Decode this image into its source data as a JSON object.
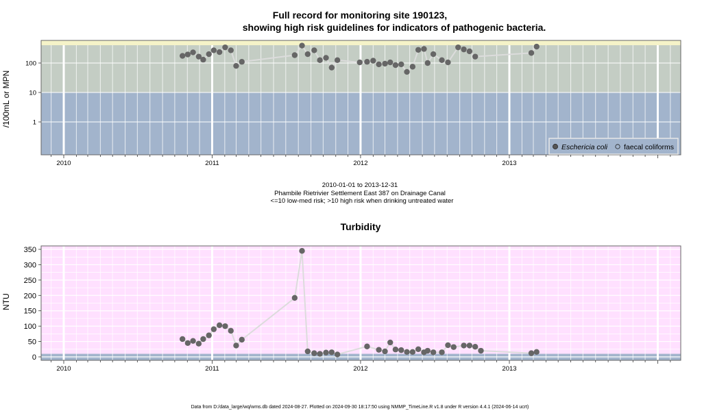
{
  "page": {
    "title_line1": "Full record for monitoring site 190123,",
    "title_line2": "showing high risk guidelines for indicators of pathogenic bacteria.",
    "caption_line1": "2010-01-01 to 2013-12-31",
    "caption_line2": "Phambile Rietrivier Settlement East 387 on Drainage Canal",
    "caption_line3": "<=10 low-med risk; >10 high risk when drinking untreated water",
    "footer": "Data from D:/data_large/wq/wms.db dated 2024-08-27. Plotted on 2024-09-30 18:17:50 using NMMP_TimeLine.R v1.8 under R version 4.4.1 (2024-06-14 ucrt)"
  },
  "colors": {
    "zone_top": "#f5f3c8",
    "zone_high": "#c4cdc4",
    "zone_low": "#a2b4cc",
    "turbidity_bg": "#ffe0ff",
    "turbidity_low_band": "#a2b4cc",
    "marker": "#666666",
    "line": "#dcdcdc"
  },
  "chart_data": [
    {
      "type": "scatter",
      "title": "",
      "ylabel": "/100mL or MPN",
      "y_scale": "log10",
      "y_ticks": [
        1,
        10,
        100
      ],
      "y_tick_labels": [
        "1",
        "10",
        "100"
      ],
      "x_range": [
        "2009-10-15",
        "2014-02-15"
      ],
      "x_ticks": [
        "2010",
        "2011",
        "2012",
        "2013"
      ],
      "guideline_bands": [
        {
          "from": 0.1,
          "to": 10,
          "label": "<=10 low-med risk"
        },
        {
          "from": 10,
          "to": 400,
          "label": ">10 high risk"
        }
      ],
      "grid": true,
      "legend_position": "bottom-right",
      "legend": [
        {
          "label": "Eschericia coli",
          "marker": "filled-circle"
        },
        {
          "label": "faecal coliforms",
          "marker": "open-circle"
        }
      ],
      "series": [
        {
          "name": "Eschericia coli",
          "points": [
            [
              "2010-10-20",
              175
            ],
            [
              "2010-11-02",
              195
            ],
            [
              "2010-11-15",
              230
            ],
            [
              "2010-11-29",
              165
            ],
            [
              "2010-12-10",
              130
            ],
            [
              "2010-12-24",
              200
            ],
            [
              "2011-01-05",
              270
            ],
            [
              "2011-01-19",
              235
            ],
            [
              "2011-02-02",
              340
            ],
            [
              "2011-02-16",
              270
            ],
            [
              "2011-03-01",
              80
            ],
            [
              "2011-03-15",
              110
            ],
            [
              "2011-07-23",
              185
            ],
            [
              "2011-08-10",
              390
            ],
            [
              "2011-08-24",
              200
            ],
            [
              "2011-09-09",
              270
            ],
            [
              "2011-09-23",
              125
            ],
            [
              "2011-10-08",
              150
            ],
            [
              "2011-10-22",
              70
            ],
            [
              "2011-11-05",
              125
            ],
            [
              "2011-12-30",
              105
            ],
            [
              "2012-01-17",
              110
            ],
            [
              "2012-02-01",
              120
            ],
            [
              "2012-02-15",
              90
            ],
            [
              "2012-03-01",
              95
            ],
            [
              "2012-03-14",
              105
            ],
            [
              "2012-03-27",
              85
            ],
            [
              "2012-04-10",
              90
            ],
            [
              "2012-04-24",
              50
            ],
            [
              "2012-05-08",
              75
            ],
            [
              "2012-05-22",
              280
            ],
            [
              "2012-06-05",
              300
            ],
            [
              "2012-06-14",
              100
            ],
            [
              "2012-06-28",
              200
            ],
            [
              "2012-07-19",
              125
            ],
            [
              "2012-08-03",
              105
            ],
            [
              "2012-08-28",
              340
            ],
            [
              "2012-09-11",
              290
            ],
            [
              "2012-09-25",
              250
            ],
            [
              "2012-10-09",
              165
            ],
            [
              "2013-02-24",
              220
            ],
            [
              "2013-03-09",
              360
            ]
          ]
        },
        {
          "name": "faecal coliforms",
          "points": []
        }
      ]
    },
    {
      "type": "line",
      "title": "Turbidity",
      "ylabel": "NTU",
      "ylim": [
        -12,
        360
      ],
      "y_ticks": [
        0,
        50,
        100,
        150,
        200,
        250,
        300,
        350
      ],
      "x_range": [
        "2009-10-15",
        "2014-02-15"
      ],
      "x_ticks": [
        "2010",
        "2011",
        "2012",
        "2013"
      ],
      "guideline_band": {
        "from": -12,
        "to": 10
      },
      "grid": true,
      "series": [
        {
          "name": "",
          "points": [
            [
              "2010-10-20",
              58
            ],
            [
              "2010-11-02",
              45
            ],
            [
              "2010-11-15",
              52
            ],
            [
              "2010-11-29",
              43
            ],
            [
              "2010-12-10",
              58
            ],
            [
              "2010-12-24",
              70
            ],
            [
              "2011-01-05",
              90
            ],
            [
              "2011-01-19",
              103
            ],
            [
              "2011-02-02",
              100
            ],
            [
              "2011-02-16",
              85
            ],
            [
              "2011-03-01",
              37
            ],
            [
              "2011-03-15",
              56
            ],
            [
              "2011-07-23",
              192
            ],
            [
              "2011-08-10",
              345
            ],
            [
              "2011-08-24",
              18
            ],
            [
              "2011-09-09",
              12
            ],
            [
              "2011-09-23",
              10
            ],
            [
              "2011-10-08",
              14
            ],
            [
              "2011-10-22",
              15
            ],
            [
              "2011-11-05",
              8
            ],
            [
              "2012-01-17",
              34
            ],
            [
              "2012-02-15",
              23
            ],
            [
              "2012-03-01",
              18
            ],
            [
              "2012-03-14",
              47
            ],
            [
              "2012-03-27",
              24
            ],
            [
              "2012-04-10",
              22
            ],
            [
              "2012-04-24",
              16
            ],
            [
              "2012-05-08",
              16
            ],
            [
              "2012-05-22",
              25
            ],
            [
              "2012-06-05",
              15
            ],
            [
              "2012-06-14",
              20
            ],
            [
              "2012-06-28",
              15
            ],
            [
              "2012-07-19",
              15
            ],
            [
              "2012-08-03",
              38
            ],
            [
              "2012-08-17",
              32
            ],
            [
              "2012-09-11",
              37
            ],
            [
              "2012-09-25",
              37
            ],
            [
              "2012-10-09",
              33
            ],
            [
              "2012-10-23",
              20
            ],
            [
              "2013-02-24",
              12
            ],
            [
              "2013-03-09",
              16
            ]
          ]
        }
      ]
    }
  ]
}
